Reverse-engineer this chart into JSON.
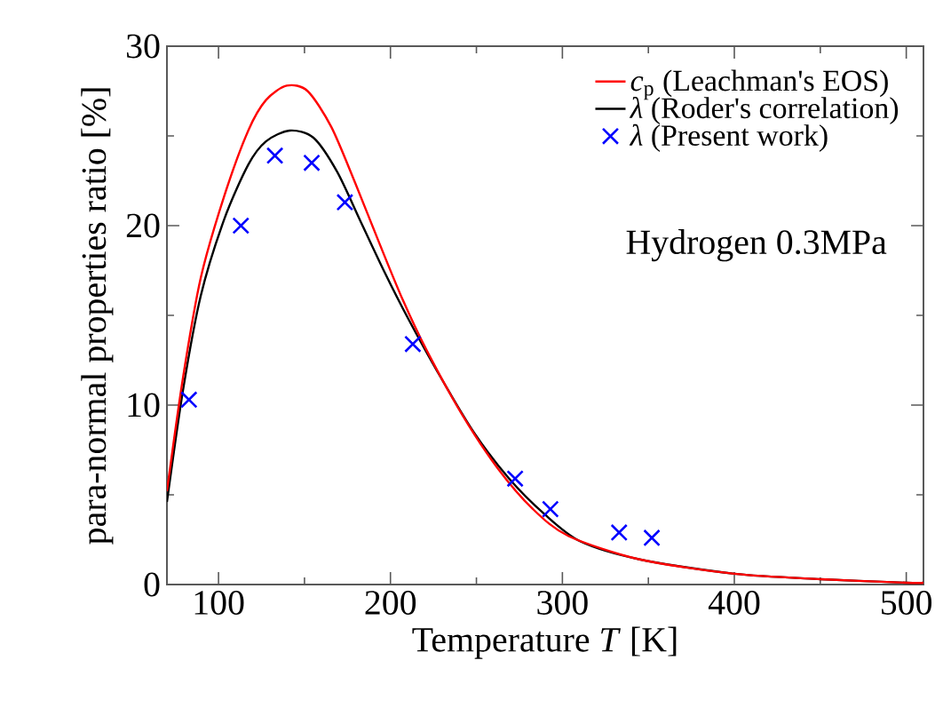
{
  "chart_data": {
    "type": "line",
    "xlabel": "Temperature *T* [K]",
    "ylabel": "para-normal properties ratio [%]",
    "xlim": [
      70,
      510
    ],
    "xticks": [
      100,
      200,
      300,
      400,
      500
    ],
    "ylim": [
      0,
      30
    ],
    "yticks": [
      0,
      10,
      20,
      30
    ],
    "legend": "top right",
    "grid": false,
    "annotations": [
      "Hydrogen 0.3MPa"
    ],
    "series": [
      {
        "name": "*c*$_{p}$ (Leachman's EOS)",
        "color": "#ff0000",
        "marker": "none",
        "line_style": "solid",
        "x": [
          70,
          79.3,
          89.7,
          103.5,
          117.3,
          127.6,
          139.7,
          151.8,
          165.6,
          179.4,
          193.2,
          207,
          220.8,
          241.5,
          262.2,
          282.9,
          303.6,
          345,
          400,
          450,
          500,
          510
        ],
        "values": [
          5.2,
          11.5,
          17.1,
          21.7,
          25.3,
          27.0,
          27.8,
          27.5,
          25.5,
          22.4,
          19.1,
          15.9,
          13.1,
          9.5,
          6.5,
          4.2,
          2.7,
          1.4,
          0.6,
          0.3,
          0.1,
          0.1
        ]
      },
      {
        "name": "*λ* (Roder's correlation)",
        "color": "#000000",
        "marker": "none",
        "line_style": "solid",
        "x": [
          70,
          79.3,
          89.7,
          103.5,
          117.3,
          127.6,
          141.4,
          155.2,
          169,
          182.8,
          196.6,
          210.4,
          227.7,
          248.4,
          269,
          289.8,
          310.5,
          345,
          400,
          450,
          500,
          510
        ],
        "values": [
          4.6,
          10.8,
          16.1,
          20.4,
          23.4,
          24.7,
          25.3,
          24.9,
          23.0,
          20.2,
          17.4,
          14.8,
          11.8,
          8.5,
          5.9,
          3.9,
          2.4,
          1.4,
          0.6,
          0.3,
          0.1,
          0.1
        ]
      },
      {
        "name": "*λ* (Present work)",
        "type": "scatter",
        "color": "#0000ff",
        "marker": "cross",
        "x": [
          82.8,
          113,
          132.8,
          154.2,
          173.5,
          213,
          272.5,
          293,
          333,
          352
        ],
        "values": [
          10.3,
          20.0,
          23.9,
          23.5,
          21.3,
          13.4,
          5.9,
          4.2,
          2.9,
          2.6
        ]
      }
    ]
  }
}
